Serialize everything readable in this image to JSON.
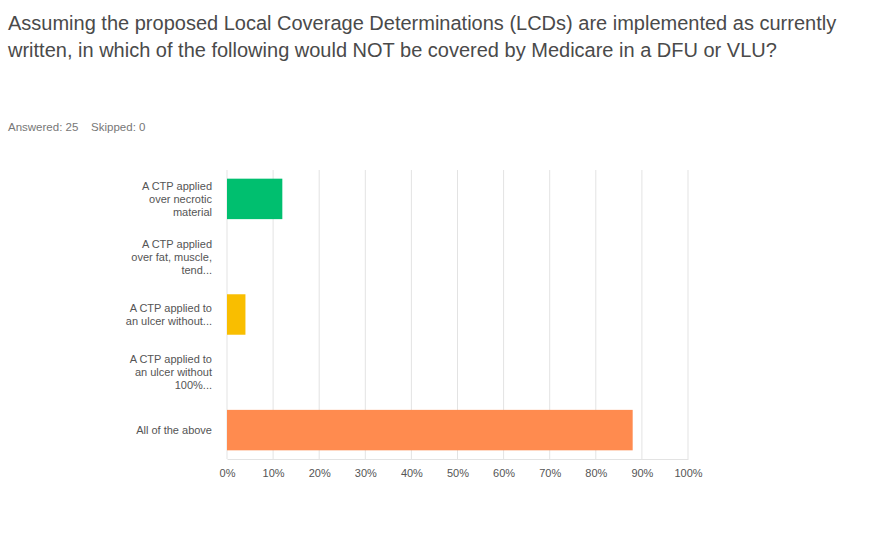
{
  "chart_data": {
    "type": "bar",
    "orientation": "horizontal",
    "title": "Assuming the proposed Local Coverage Determinations (LCDs) are implemented as currently written, in which of the following would NOT be covered by Medicare in a DFU or VLU?",
    "subtitle": "Answered: 25    Skipped: 0",
    "categories": [
      "A CTP applied over necrotic material",
      "A CTP applied over fat, muscle, tend...",
      "A CTP applied to an ulcer without...",
      "A CTP applied to an ulcer without 100%...",
      "All of the above"
    ],
    "values": [
      12,
      0,
      4,
      0,
      88
    ],
    "colors": [
      "#00bf6f",
      "#2dccd3",
      "#f9be00",
      "#6bc8cd",
      "#ff8b4f"
    ],
    "xlim": [
      0,
      100
    ],
    "xticks": [
      {
        "value": 0,
        "label": "0%"
      },
      {
        "value": 10,
        "label": "10%"
      },
      {
        "value": 20,
        "label": "20%"
      },
      {
        "value": 30,
        "label": "30%"
      },
      {
        "value": 40,
        "label": "40%"
      },
      {
        "value": 50,
        "label": "50%"
      },
      {
        "value": 60,
        "label": "60%"
      },
      {
        "value": 70,
        "label": "70%"
      },
      {
        "value": 80,
        "label": "80%"
      },
      {
        "value": 90,
        "label": "90%"
      },
      {
        "value": 100,
        "label": "100%"
      }
    ],
    "grid": true
  }
}
